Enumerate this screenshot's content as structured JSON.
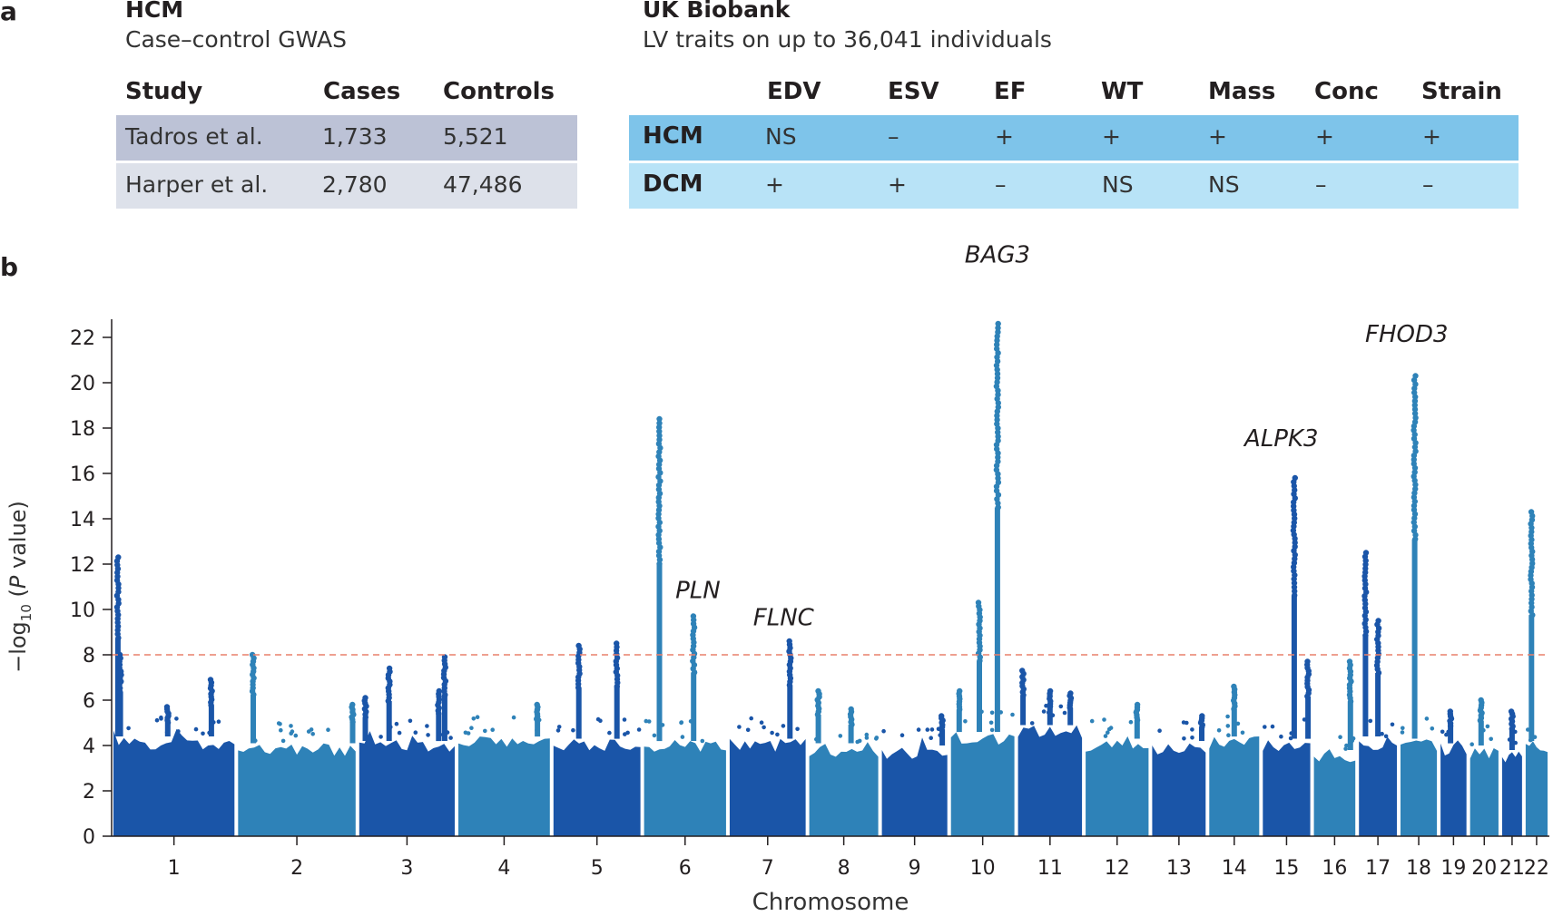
{
  "panel_a": {
    "label": "a",
    "left_table": {
      "title": "HCM",
      "subtitle": "Case–control GWAS",
      "headers": [
        "Study",
        "Cases",
        "Controls"
      ],
      "rows": [
        [
          "Tadros et al.",
          "1,733",
          "5,521"
        ],
        [
          "Harper et al.",
          "2,780",
          "47,486"
        ]
      ],
      "row_colors": [
        "#bcc2d6",
        "#dde1ea"
      ]
    },
    "right_table": {
      "title": "UK Biobank",
      "subtitle": "LV traits on up to 36,041 individuals",
      "headers": [
        "EDV",
        "ESV",
        "EF",
        "WT",
        "Mass",
        "Conc",
        "Strain"
      ],
      "rows": [
        {
          "label": "HCM",
          "values": [
            "NS",
            "–",
            "+",
            "+",
            "+",
            "+",
            "+"
          ]
        },
        {
          "label": "DCM",
          "values": [
            "+",
            "+",
            "–",
            "NS",
            "NS",
            "–",
            "–"
          ]
        }
      ],
      "row_colors": [
        "#7ec4ea",
        "#b8e3f7"
      ]
    }
  },
  "panel_b": {
    "label": "b"
  },
  "chart_data": {
    "type": "scatter",
    "title": "",
    "xlabel": "Chromosome",
    "ylabel_prefix": "−log",
    "ylabel_sub": "10",
    "ylabel_open": " (",
    "ylabel_italic": "P",
    "ylabel_suffix": " value)",
    "ylim": [
      0,
      22.5
    ],
    "yticks": [
      0,
      2,
      4,
      6,
      8,
      10,
      12,
      14,
      16,
      18,
      20,
      22
    ],
    "threshold": 8,
    "threshold_color": "#e8806c",
    "colors": [
      "#1a55a8",
      "#2e82b8",
      "#6f9fd6"
    ],
    "chromosomes": [
      {
        "name": "1",
        "baseline": 4.4
      },
      {
        "name": "2",
        "baseline": 4.1
      },
      {
        "name": "3",
        "baseline": 4.2
      },
      {
        "name": "4",
        "baseline": 4.4
      },
      {
        "name": "5",
        "baseline": 4.3
      },
      {
        "name": "6",
        "baseline": 4.2
      },
      {
        "name": "7",
        "baseline": 4.3
      },
      {
        "name": "8",
        "baseline": 4.1
      },
      {
        "name": "9",
        "baseline": 4.0
      },
      {
        "name": "10",
        "baseline": 4.6
      },
      {
        "name": "11",
        "baseline": 4.9
      },
      {
        "name": "12",
        "baseline": 4.3
      },
      {
        "name": "13",
        "baseline": 4.2
      },
      {
        "name": "14",
        "baseline": 4.4
      },
      {
        "name": "15",
        "baseline": 4.3
      },
      {
        "name": "16",
        "baseline": 3.8
      },
      {
        "name": "17",
        "baseline": 4.4
      },
      {
        "name": "18",
        "baseline": 4.3
      },
      {
        "name": "19",
        "baseline": 4.1
      },
      {
        "name": "20",
        "baseline": 4.0
      },
      {
        "name": "21",
        "baseline": 3.8
      },
      {
        "name": "22",
        "baseline": 4.2
      }
    ],
    "peaks": [
      {
        "chr": "1",
        "pos": 0.05,
        "top": 12.3
      },
      {
        "chr": "1",
        "pos": 0.07,
        "top": 8.0
      },
      {
        "chr": "1",
        "pos": 0.45,
        "top": 5.7
      },
      {
        "chr": "1",
        "pos": 0.8,
        "top": 6.9
      },
      {
        "chr": "2",
        "pos": 0.14,
        "top": 8.0
      },
      {
        "chr": "2",
        "pos": 0.96,
        "top": 5.8
      },
      {
        "chr": "3",
        "pos": 0.08,
        "top": 6.1
      },
      {
        "chr": "3",
        "pos": 0.32,
        "top": 7.4
      },
      {
        "chr": "3",
        "pos": 0.82,
        "top": 6.4
      },
      {
        "chr": "3",
        "pos": 0.88,
        "top": 7.9
      },
      {
        "chr": "4",
        "pos": 0.85,
        "top": 5.8
      },
      {
        "chr": "5",
        "pos": 0.3,
        "top": 8.4
      },
      {
        "chr": "5",
        "pos": 0.72,
        "top": 8.5
      },
      {
        "chr": "6",
        "pos": 0.2,
        "top": 18.4
      },
      {
        "chr": "6",
        "pos": 0.6,
        "top": 9.7
      },
      {
        "chr": "7",
        "pos": 0.78,
        "top": 8.6
      },
      {
        "chr": "8",
        "pos": 0.15,
        "top": 6.4
      },
      {
        "chr": "8",
        "pos": 0.6,
        "top": 5.6
      },
      {
        "chr": "9",
        "pos": 0.9,
        "top": 5.3
      },
      {
        "chr": "10",
        "pos": 0.15,
        "top": 6.4
      },
      {
        "chr": "10",
        "pos": 0.45,
        "top": 10.3
      },
      {
        "chr": "10",
        "pos": 0.72,
        "top": 22.6
      },
      {
        "chr": "11",
        "pos": 0.1,
        "top": 7.3
      },
      {
        "chr": "11",
        "pos": 0.5,
        "top": 6.4
      },
      {
        "chr": "11",
        "pos": 0.8,
        "top": 6.3
      },
      {
        "chr": "12",
        "pos": 0.8,
        "top": 5.8
      },
      {
        "chr": "13",
        "pos": 0.9,
        "top": 5.3
      },
      {
        "chr": "14",
        "pos": 0.5,
        "top": 6.6
      },
      {
        "chr": "15",
        "pos": 0.65,
        "top": 15.8
      },
      {
        "chr": "15",
        "pos": 0.92,
        "top": 7.7
      },
      {
        "chr": "16",
        "pos": 0.85,
        "top": 7.7
      },
      {
        "chr": "17",
        "pos": 0.2,
        "top": 12.5
      },
      {
        "chr": "17",
        "pos": 0.5,
        "top": 9.5
      },
      {
        "chr": "18",
        "pos": 0.4,
        "top": 20.3
      },
      {
        "chr": "19",
        "pos": 0.4,
        "top": 5.5
      },
      {
        "chr": "20",
        "pos": 0.4,
        "top": 6.0
      },
      {
        "chr": "21",
        "pos": 0.5,
        "top": 5.5
      },
      {
        "chr": "22",
        "pos": 0.3,
        "top": 14.3
      }
    ],
    "annotations": [
      {
        "text": "BAG3",
        "x_chr": "10",
        "pos": 0.72,
        "y": 25.3
      },
      {
        "text": "FHOD3",
        "x_chr": "18",
        "pos": 0.2,
        "y": 21.8
      },
      {
        "text": "ALPK3",
        "x_chr": "15",
        "pos": 0.4,
        "y": 17.2
      },
      {
        "text": "PLN",
        "x_chr": "6",
        "pos": 0.65,
        "y": 10.5
      },
      {
        "text": "FLNC",
        "x_chr": "7",
        "pos": 0.7,
        "y": 9.3
      }
    ]
  }
}
